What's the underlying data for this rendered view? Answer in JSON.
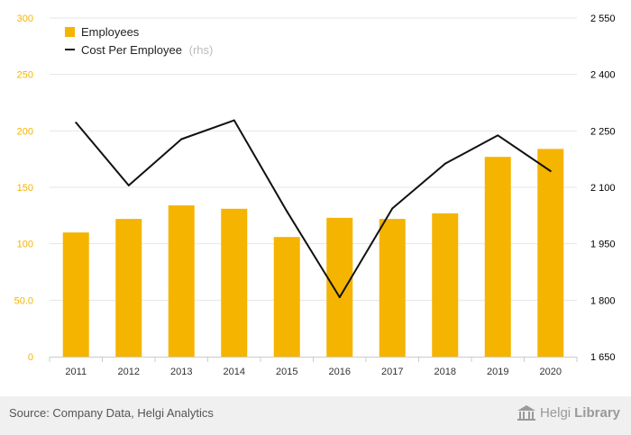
{
  "chart_data": {
    "type": "bar+line",
    "categories": [
      "2011",
      "2012",
      "2013",
      "2014",
      "2015",
      "2016",
      "2017",
      "2018",
      "2019",
      "2020"
    ],
    "series": [
      {
        "name": "Employees",
        "type": "bar",
        "axis": "left",
        "color": "#f5b400",
        "values": [
          110,
          122,
          134,
          131,
          106,
          123,
          122,
          127,
          177,
          184
        ]
      },
      {
        "name": "Cost Per Employee",
        "suffix": "(rhs)",
        "type": "line",
        "axis": "right",
        "color": "#111111",
        "values": [
          2272,
          2105,
          2228,
          2278,
          2036,
          1808,
          2044,
          2163,
          2238,
          2143
        ]
      }
    ],
    "y_left": {
      "range": [
        0,
        300
      ],
      "ticks": [
        0,
        50,
        100,
        150,
        200,
        250,
        300
      ],
      "tick_labels": [
        "0",
        "50.0",
        "100",
        "150",
        "200",
        "250",
        "300"
      ],
      "label_color": "#f5b400"
    },
    "y_right": {
      "range": [
        1650,
        2550
      ],
      "ticks": [
        1650,
        1800,
        1950,
        2100,
        2250,
        2400,
        2550
      ],
      "tick_labels": [
        "1 650",
        "1 800",
        "1 950",
        "2 100",
        "2 250",
        "2 400",
        "2 550"
      ],
      "label_color": "#000000"
    },
    "legend_position": "top-left",
    "grid": true
  },
  "footer": {
    "source": "Source: Company Data, Helgi Analytics",
    "brand_part1": "Helgi",
    "brand_part2": "Library"
  }
}
